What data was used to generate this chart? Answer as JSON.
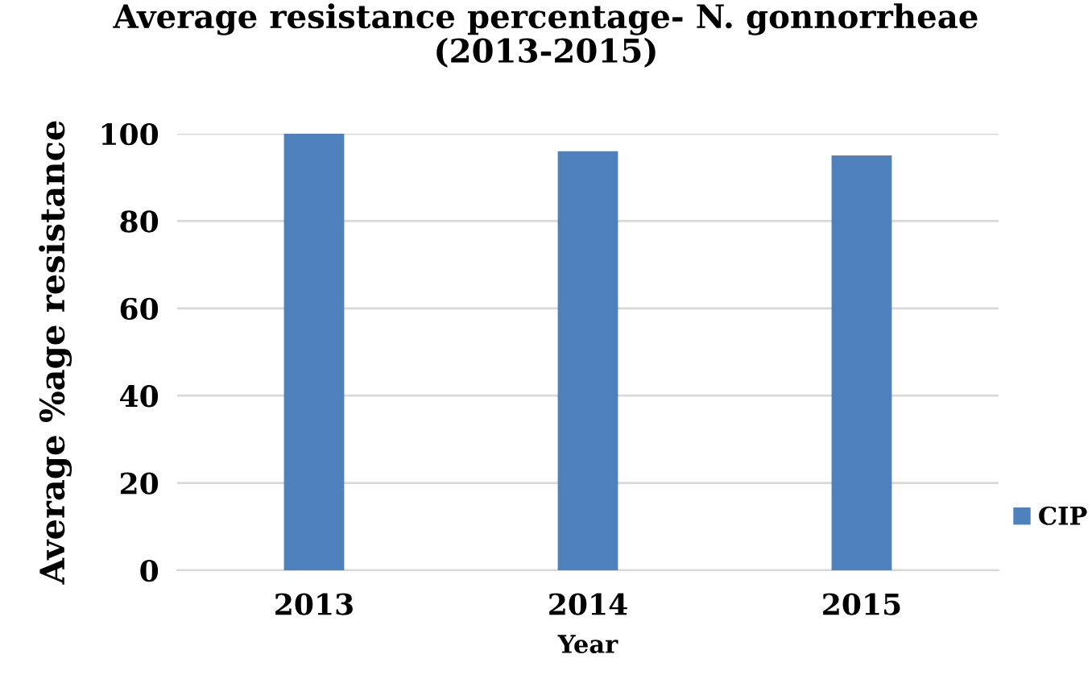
{
  "chart_data": {
    "type": "bar",
    "title": "Average resistance percentage- N. gonnorrheae\n(2013-2015)",
    "xlabel": "Year",
    "ylabel": "Average %age resistance",
    "categories": [
      "2013",
      "2014",
      "2015"
    ],
    "series": [
      {
        "name": "CIP",
        "color": "#4f81bd",
        "values": [
          100,
          96,
          95
        ]
      }
    ],
    "ylim": [
      0,
      100
    ],
    "yticks": [
      0,
      20,
      40,
      60,
      80,
      100
    ],
    "grid": "y",
    "legend": "bottom right"
  }
}
